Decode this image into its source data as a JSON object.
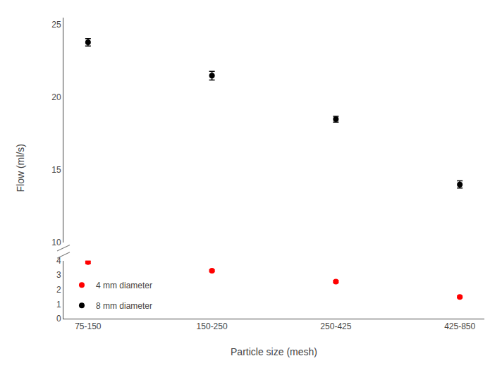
{
  "chart_data": {
    "type": "scatter",
    "xlabel": "Particle size (mesh)",
    "ylabel": "Flow (ml/s)",
    "categories": [
      "75-150",
      "150-250",
      "250-425",
      "425-850"
    ],
    "series": [
      {
        "name": "4 mm diameter",
        "color": "red",
        "values": [
          3.9,
          3.3,
          2.55,
          1.5
        ],
        "yerr": [
          0.1,
          0.07,
          0.07,
          0.07
        ]
      },
      {
        "name": "8 mm diameter",
        "color": "black",
        "values": [
          23.8,
          21.5,
          18.5,
          14.0
        ],
        "yerr": [
          0.25,
          0.3,
          0.2,
          0.25
        ]
      }
    ],
    "marker": "circle",
    "line_style": "none",
    "ylim": [
      0,
      25.5
    ],
    "ybreak": [
      4,
      10
    ],
    "yticks": [
      0,
      1,
      2,
      3,
      4,
      10,
      15,
      20,
      25
    ],
    "grid": false,
    "legend": "lower left"
  }
}
